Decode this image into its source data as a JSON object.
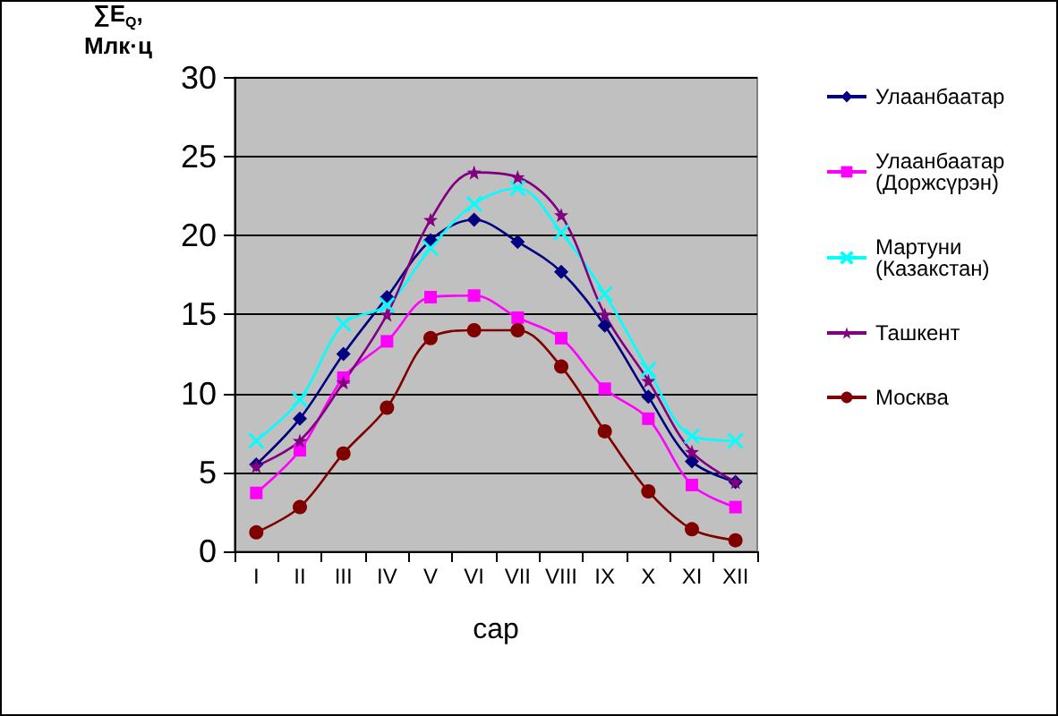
{
  "chart_data": {
    "type": "line",
    "xlabel": "сар",
    "ylabel": "∑E$_{Q}$,\nМлк·ц",
    "categories": [
      "I",
      "II",
      "III",
      "IV",
      "V",
      "VI",
      "VII",
      "VIII",
      "IX",
      "X",
      "XI",
      "XII"
    ],
    "series": [
      {
        "name": "Улаанбаатар",
        "color": "#000080",
        "marker": "diamond",
        "values": [
          5.5,
          8.4,
          12.5,
          16.1,
          19.7,
          21.0,
          19.6,
          17.7,
          14.3,
          9.8,
          5.7,
          4.4
        ]
      },
      {
        "name": "Улаанбаатар\n(Доржсүрэн)",
        "color": "#ff00ff",
        "marker": "square",
        "values": [
          3.7,
          6.4,
          11.0,
          13.3,
          16.1,
          16.2,
          14.8,
          13.5,
          10.3,
          8.4,
          4.2,
          2.8
        ]
      },
      {
        "name": "Мартуни\n(Казакстан)",
        "color": "#00ffff",
        "marker": "cross",
        "values": [
          7.0,
          9.6,
          14.4,
          15.6,
          19.2,
          22.0,
          23.0,
          20.2,
          16.3,
          11.5,
          7.3,
          7.0
        ]
      },
      {
        "name": "Ташкент",
        "color": "#800080",
        "marker": "star",
        "values": [
          5.4,
          7.0,
          10.7,
          15.0,
          21.0,
          24.0,
          23.7,
          21.3,
          15.0,
          10.8,
          6.3,
          4.4
        ]
      },
      {
        "name": "Москва",
        "color": "#800000",
        "marker": "circle",
        "values": [
          1.2,
          2.8,
          6.2,
          9.1,
          13.5,
          14.0,
          14.0,
          11.7,
          7.6,
          3.8,
          1.4,
          0.7
        ]
      }
    ],
    "ylim": [
      0,
      30
    ],
    "yticks": [
      0,
      5,
      10,
      15,
      20,
      25,
      30
    ],
    "grid": "y",
    "legend": "right"
  }
}
